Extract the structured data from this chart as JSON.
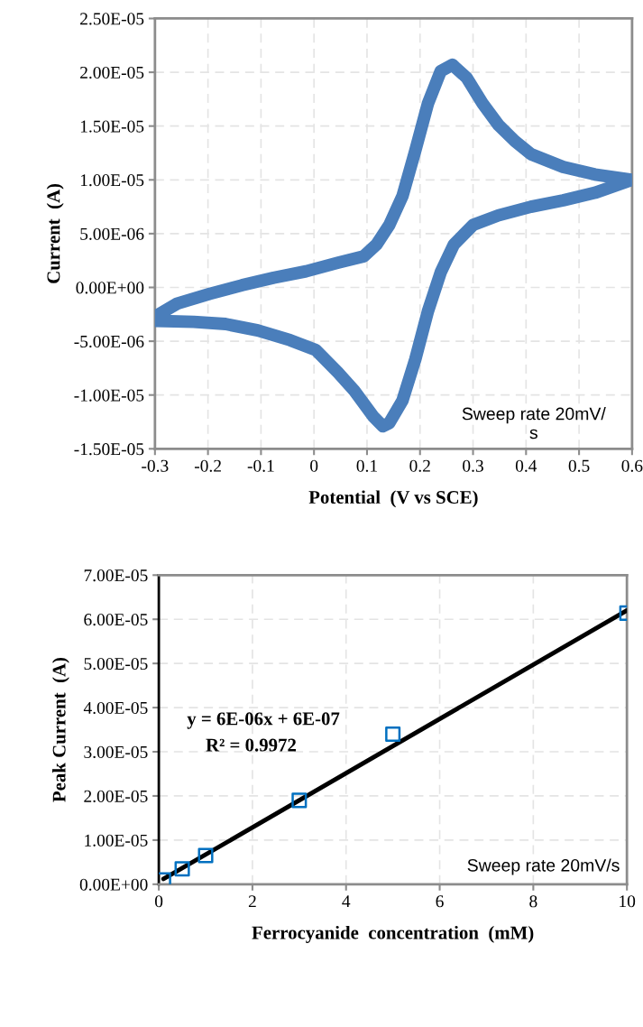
{
  "chart_data": [
    {
      "type": "line",
      "xlabel": "Potential  (V vs SCE)",
      "ylabel": "Current  (A)",
      "x": [
        -0.3,
        -0.258,
        -0.197,
        -0.136,
        -0.076,
        -0.015,
        0.045,
        0.094,
        0.118,
        0.142,
        0.167,
        0.191,
        0.215,
        0.239,
        0.261,
        0.288,
        0.318,
        0.348,
        0.379,
        0.409,
        0.47,
        0.53,
        0.6,
        0.53,
        0.47,
        0.409,
        0.348,
        0.3,
        0.264,
        0.239,
        0.215,
        0.191,
        0.167,
        0.142,
        0.13,
        0.112,
        0.076,
        0.045,
        0.003,
        -0.045,
        -0.106,
        -0.167,
        -0.227,
        -0.3
      ],
      "series": [
        {
          "color": "#4a7ebb",
          "values": [
            -2.7e-06,
            -1.5e-06,
            -6e-07,
            2e-07,
            9e-07,
            1.5e-06,
            2.3e-06,
            2.9e-06,
            4e-06,
            5.8e-06,
            8.5e-06,
            1.27e-05,
            1.71e-05,
            2.01e-05,
            2.07e-05,
            1.95e-05,
            1.71e-05,
            1.51e-05,
            1.36e-05,
            1.24e-05,
            1.12e-05,
            1.05e-05,
            1e-05,
            8.8e-06,
            8.1e-06,
            7.5e-06,
            6.7e-06,
            5.8e-06,
            4e-06,
            1.4e-06,
            -2.2e-06,
            -6.7e-06,
            -1.05e-05,
            -1.26e-05,
            -1.29e-05,
            -1.2e-05,
            -9.6e-06,
            -7.9e-06,
            -5.8e-06,
            -4.9e-06,
            -4e-06,
            -3.4e-06,
            -3.2e-06,
            -3.1e-06
          ]
        }
      ],
      "xlim": [
        -0.3,
        0.6
      ],
      "xticks": [
        -0.3,
        -0.2,
        -0.1,
        0,
        0.1,
        0.2,
        0.3,
        0.4,
        0.5,
        0.6
      ],
      "ylim": [
        -1.5e-05,
        2.5e-05
      ],
      "yticks": [
        {
          "value": -1.5e-05,
          "label": "-1.50E-05"
        },
        {
          "value": -1e-05,
          "label": "-1.00E-05"
        },
        {
          "value": -5e-06,
          "label": "-5.00E-06"
        },
        {
          "value": 0,
          "label": "0.00E+00"
        },
        {
          "value": 5e-06,
          "label": "5.00E-06"
        },
        {
          "value": 1e-05,
          "label": "1.00E-05"
        },
        {
          "value": 1.5e-05,
          "label": "1.50E-05"
        },
        {
          "value": 2e-05,
          "label": "2.00E-05"
        },
        {
          "value": 2.5e-05,
          "label": "2.50E-05"
        }
      ],
      "grid": true,
      "legend": false,
      "marker": "none",
      "line_style": "solid",
      "annotations": [
        "Sweep rate 20mV/\ns"
      ]
    },
    {
      "type": "scatter",
      "xlabel": "Ferrocyanide  concentration  (mM)",
      "ylabel": "Peak Current  (A)",
      "x": [
        0.1,
        0.5,
        1,
        3,
        5,
        10
      ],
      "series": [
        {
          "color": "#0070c0",
          "values": [
            1e-06,
            3.5e-06,
            6.5e-06,
            1.9e-05,
            3.4e-05,
            6.14e-05
          ],
          "marker": "square"
        },
        {
          "type": "line",
          "color": "#000000",
          "x": [
            0.1,
            10
          ],
          "values": [
            1.2e-06,
            6.2e-05
          ],
          "marker": "none"
        }
      ],
      "xlim": [
        0,
        10
      ],
      "xticks": [
        0,
        2,
        4,
        6,
        8,
        10
      ],
      "ylim": [
        0,
        7e-05
      ],
      "yticks": [
        {
          "value": 0,
          "label": "0.00E+00"
        },
        {
          "value": 1e-05,
          "label": "1.00E-05"
        },
        {
          "value": 2e-05,
          "label": "2.00E-05"
        },
        {
          "value": 3e-05,
          "label": "3.00E-05"
        },
        {
          "value": 4e-05,
          "label": "4.00E-05"
        },
        {
          "value": 5e-05,
          "label": "5.00E-05"
        },
        {
          "value": 6e-05,
          "label": "6.00E-05"
        },
        {
          "value": 7e-05,
          "label": "7.00E-05"
        }
      ],
      "grid": true,
      "legend": false,
      "annotations": [
        "y = 6E-06x + 6E-07",
        "R² = 0.9972",
        "Sweep rate 20mV/s"
      ]
    }
  ]
}
